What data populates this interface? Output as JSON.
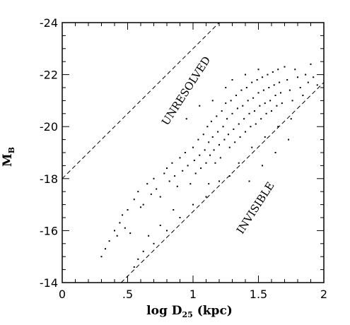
{
  "chart_data": {
    "type": "scatter",
    "xlabel": "log D",
    "xlabel_subscript": "25",
    "xlabel_unit": "(kpc)",
    "ylabel": "M",
    "ylabel_subscript": "B",
    "xlim": [
      0,
      2
    ],
    "ylim": [
      -14,
      -24
    ],
    "y_inverted": true,
    "x_ticks": [
      {
        "value": 0,
        "label": "0"
      },
      {
        "value": 0.5,
        "label": ".5"
      },
      {
        "value": 1,
        "label": "1"
      },
      {
        "value": 1.5,
        "label": "1.5"
      },
      {
        "value": 2,
        "label": "2"
      }
    ],
    "y_ticks": [
      {
        "value": -14,
        "label": "-14"
      },
      {
        "value": -16,
        "label": "-16"
      },
      {
        "value": -18,
        "label": "-18"
      },
      {
        "value": -20,
        "label": "-20"
      },
      {
        "value": -22,
        "label": "-22"
      },
      {
        "value": -24,
        "label": "-24"
      }
    ],
    "grid": false,
    "reference_lines": [
      {
        "name": "unresolved-line",
        "style": "dashed",
        "points": [
          [
            0,
            -18
          ],
          [
            1.2,
            -24
          ]
        ]
      },
      {
        "name": "invisible-line",
        "style": "dashed",
        "points": [
          [
            0.45,
            -14
          ],
          [
            2,
            -21.7
          ]
        ]
      }
    ],
    "annotations": [
      {
        "text": "UNRESOLVED",
        "x": 0.97,
        "y": -21.3,
        "angle": -57
      },
      {
        "text": "INVISIBLE",
        "x": 1.5,
        "y": -16.8,
        "angle": -57
      }
    ],
    "series": [
      {
        "points": [
          [
            0.3,
            -15.0
          ],
          [
            0.33,
            -15.3
          ],
          [
            0.36,
            -15.6
          ],
          [
            0.4,
            -16.0
          ],
          [
            0.42,
            -15.8
          ],
          [
            0.44,
            -16.3
          ],
          [
            0.46,
            -16.6
          ],
          [
            0.48,
            -16.1
          ],
          [
            0.5,
            -16.8
          ],
          [
            0.52,
            -15.9
          ],
          [
            0.55,
            -17.2
          ],
          [
            0.58,
            -17.5
          ],
          [
            0.6,
            -16.9
          ],
          [
            0.62,
            -17.0
          ],
          [
            0.65,
            -17.8
          ],
          [
            0.68,
            -17.4
          ],
          [
            0.7,
            -18.0
          ],
          [
            0.72,
            -17.6
          ],
          [
            0.75,
            -17.3
          ],
          [
            0.78,
            -18.2
          ],
          [
            0.8,
            -18.4
          ],
          [
            0.82,
            -17.9
          ],
          [
            0.84,
            -18.6
          ],
          [
            0.86,
            -18.1
          ],
          [
            0.88,
            -17.7
          ],
          [
            0.9,
            -18.8
          ],
          [
            0.92,
            -18.3
          ],
          [
            0.94,
            -19.0
          ],
          [
            0.96,
            -18.5
          ],
          [
            0.98,
            -17.8
          ],
          [
            1.0,
            -19.2
          ],
          [
            1.01,
            -18.7
          ],
          [
            1.02,
            -18.2
          ],
          [
            1.04,
            -19.5
          ],
          [
            1.05,
            -18.9
          ],
          [
            1.06,
            -18.4
          ],
          [
            1.08,
            -19.7
          ],
          [
            1.09,
            -19.1
          ],
          [
            1.1,
            -18.6
          ],
          [
            1.11,
            -20.0
          ],
          [
            1.12,
            -19.4
          ],
          [
            1.13,
            -18.9
          ],
          [
            1.14,
            -20.2
          ],
          [
            1.15,
            -19.6
          ],
          [
            1.16,
            -19.1
          ],
          [
            1.17,
            -18.6
          ],
          [
            1.18,
            -20.4
          ],
          [
            1.19,
            -19.8
          ],
          [
            1.2,
            -19.3
          ],
          [
            1.21,
            -18.8
          ],
          [
            1.22,
            -20.6
          ],
          [
            1.23,
            -20.0
          ],
          [
            1.24,
            -19.5
          ],
          [
            1.25,
            -20.9
          ],
          [
            1.26,
            -20.3
          ],
          [
            1.27,
            -19.7
          ],
          [
            1.28,
            -19.2
          ],
          [
            1.29,
            -21.0
          ],
          [
            1.3,
            -20.5
          ],
          [
            1.31,
            -19.9
          ],
          [
            1.32,
            -19.4
          ],
          [
            1.33,
            -21.2
          ],
          [
            1.34,
            -20.7
          ],
          [
            1.35,
            -20.1
          ],
          [
            1.36,
            -19.6
          ],
          [
            1.37,
            -21.4
          ],
          [
            1.38,
            -20.8
          ],
          [
            1.39,
            -20.3
          ],
          [
            1.4,
            -19.8
          ],
          [
            1.41,
            -21.5
          ],
          [
            1.42,
            -21.0
          ],
          [
            1.43,
            -20.5
          ],
          [
            1.44,
            -20.0
          ],
          [
            1.45,
            -21.7
          ],
          [
            1.46,
            -21.1
          ],
          [
            1.47,
            -20.6
          ],
          [
            1.48,
            -20.1
          ],
          [
            1.49,
            -21.8
          ],
          [
            1.5,
            -21.3
          ],
          [
            1.51,
            -20.8
          ],
          [
            1.52,
            -20.3
          ],
          [
            1.53,
            -21.9
          ],
          [
            1.54,
            -21.4
          ],
          [
            1.55,
            -20.9
          ],
          [
            1.56,
            -20.5
          ],
          [
            1.57,
            -22.0
          ],
          [
            1.58,
            -21.5
          ],
          [
            1.59,
            -21.0
          ],
          [
            1.6,
            -20.6
          ],
          [
            1.61,
            -22.1
          ],
          [
            1.62,
            -21.6
          ],
          [
            1.63,
            -21.2
          ],
          [
            1.64,
            -20.8
          ],
          [
            1.65,
            -22.2
          ],
          [
            1.66,
            -21.7
          ],
          [
            1.67,
            -21.3
          ],
          [
            1.68,
            -20.9
          ],
          [
            1.7,
            -22.3
          ],
          [
            1.72,
            -21.8
          ],
          [
            1.74,
            -21.4
          ],
          [
            1.76,
            -21.0
          ],
          [
            1.78,
            -22.2
          ],
          [
            1.8,
            -21.9
          ],
          [
            1.82,
            -21.5
          ],
          [
            1.84,
            -21.2
          ],
          [
            1.86,
            -22.0
          ],
          [
            1.88,
            -21.7
          ],
          [
            1.9,
            -22.4
          ],
          [
            1.92,
            -21.9
          ],
          [
            1.95,
            -21.6
          ],
          [
            0.95,
            -20.3
          ],
          [
            1.05,
            -20.8
          ],
          [
            1.12,
            -17.8
          ],
          [
            1.2,
            -17.9
          ],
          [
            1.28,
            -18.1
          ],
          [
            0.85,
            -16.8
          ],
          [
            0.75,
            -16.2
          ],
          [
            0.66,
            -15.8
          ],
          [
            0.58,
            -14.9
          ],
          [
            0.55,
            -14.6
          ],
          [
            1.35,
            -18.6
          ],
          [
            1.45,
            -19.2
          ],
          [
            1.55,
            -19.6
          ],
          [
            1.65,
            -20.0
          ],
          [
            1.75,
            -20.3
          ],
          [
            1.15,
            -21.0
          ],
          [
            1.25,
            -21.5
          ],
          [
            1.3,
            -21.8
          ],
          [
            1.4,
            -22.0
          ],
          [
            1.5,
            -22.2
          ],
          [
            1.1,
            -17.3
          ],
          [
            1.0,
            -17.0
          ],
          [
            0.9,
            -16.5
          ],
          [
            0.8,
            -16.0
          ],
          [
            0.7,
            -15.5
          ],
          [
            0.62,
            -15.2
          ],
          [
            1.43,
            -17.9
          ],
          [
            1.53,
            -18.5
          ],
          [
            1.63,
            -19.0
          ],
          [
            1.73,
            -19.5
          ]
        ]
      }
    ]
  }
}
